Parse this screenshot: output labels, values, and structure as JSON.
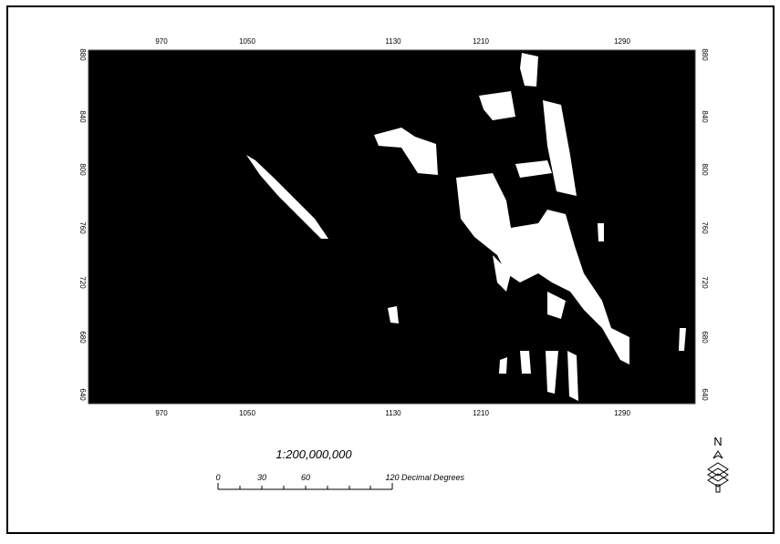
{
  "map": {
    "x_ticks": [
      970,
      1050,
      1130,
      1210,
      1290
    ],
    "y_ticks": [
      880,
      840,
      800,
      760,
      720,
      680,
      640
    ],
    "scale": "1:200,000,000",
    "scale_bar": {
      "labels": [
        "0",
        "30",
        "60",
        "120"
      ],
      "unit": "Decimal Degrees"
    },
    "north": "N"
  }
}
